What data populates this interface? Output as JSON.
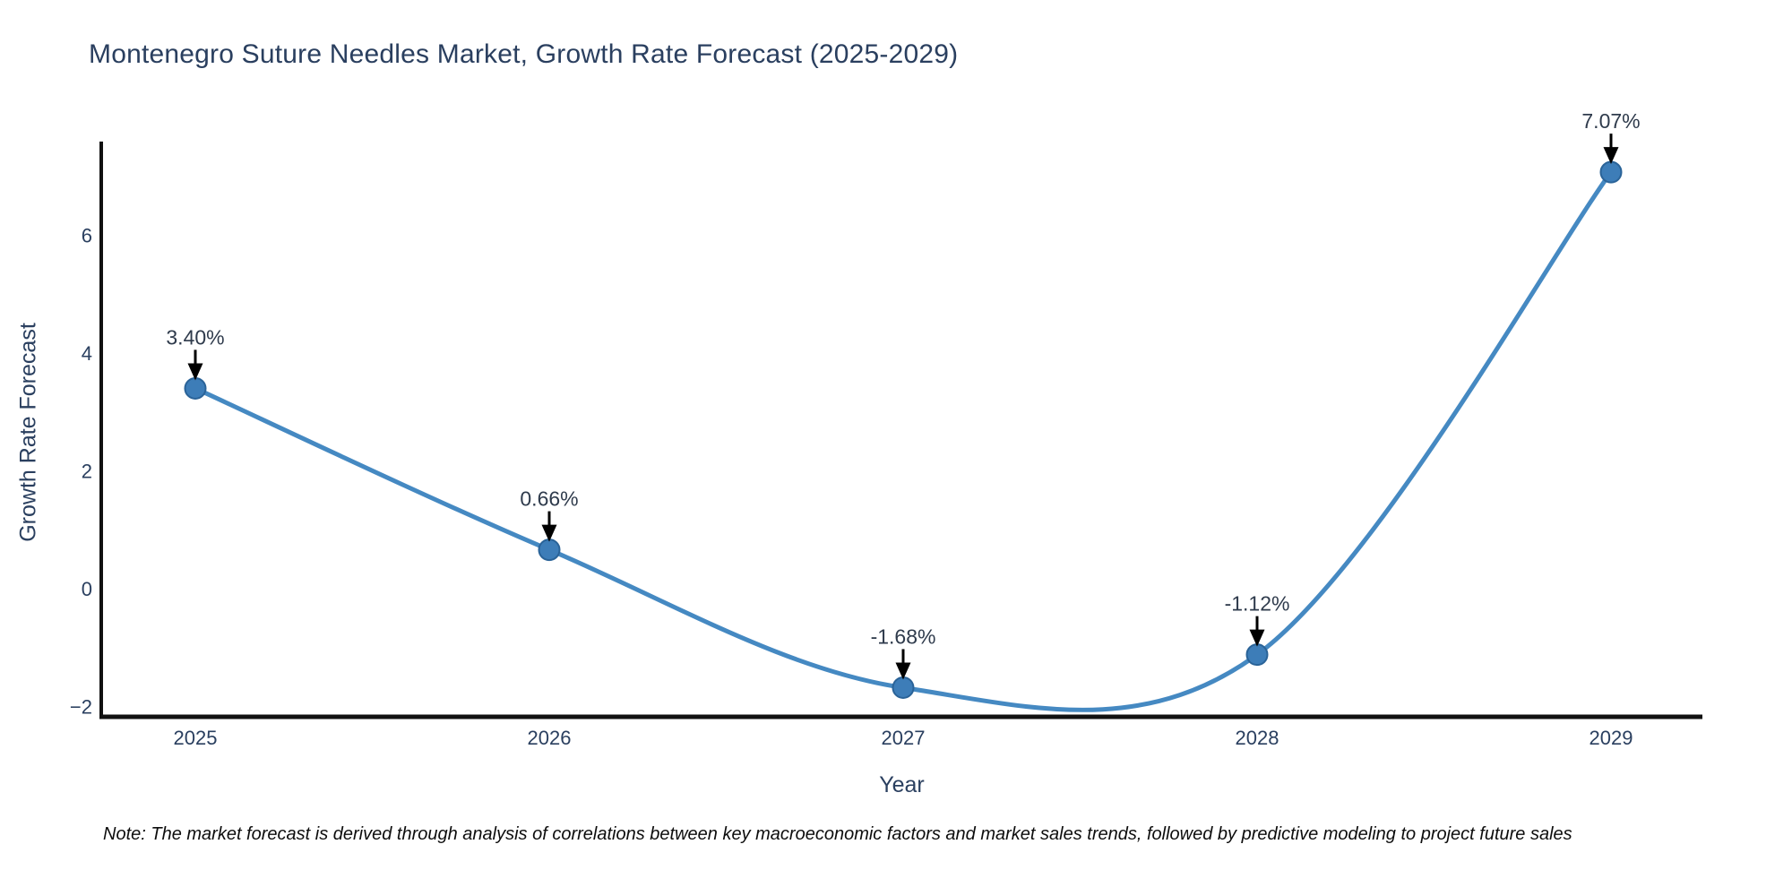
{
  "title": "Montenegro Suture Needles Market, Growth Rate Forecast (2025-2029)",
  "note": "Note: The market forecast is derived through analysis of correlations between key macroeconomic factors and market sales trends, followed by predictive modeling to project future sales",
  "chart_data": {
    "type": "line",
    "title": "Montenegro Suture Needles Market, Growth Rate Forecast (2025-2029)",
    "xlabel": "Year",
    "ylabel": "Growth Rate Forecast",
    "categories": [
      "2025",
      "2026",
      "2027",
      "2028",
      "2029"
    ],
    "values": [
      3.4,
      0.66,
      -1.68,
      -1.12,
      7.07
    ],
    "point_labels": [
      "3.40%",
      "0.66%",
      "-1.68%",
      "-1.12%",
      "7.07%"
    ],
    "y_ticks": [
      6,
      4,
      2,
      0,
      -2
    ],
    "y_tick_labels": [
      "6",
      "4",
      "2",
      "0",
      "−2"
    ],
    "ylim": [
      -2.17,
      7.75
    ],
    "line_shape": "spline",
    "grid": false,
    "legend": "none",
    "annotations_have_arrows": true,
    "colors": {
      "line": "#4589c2",
      "marker_fill": "#3d7db8",
      "marker_border": "#2a6398",
      "axis": "#111111",
      "arrow": "#000000",
      "tick_text": "#2a3f5f",
      "title_text": "#2a3f5f",
      "annotation_text": "#2f3b4c"
    }
  }
}
